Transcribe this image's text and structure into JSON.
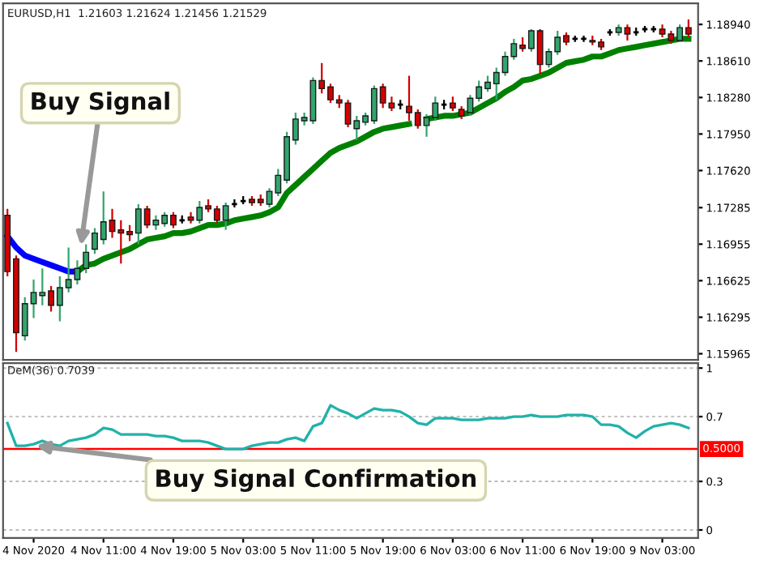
{
  "chart_data": [
    {
      "type": "candlestick",
      "title": "EURUSD,H1  1.21603 1.21624 1.21456 1.21529",
      "categories": [
        null,
        null,
        null,
        null,
        null,
        null,
        null,
        null,
        null,
        null,
        null,
        null,
        null,
        null,
        null,
        null,
        null,
        null,
        null,
        null,
        null,
        null,
        null,
        null,
        null,
        null,
        null,
        null,
        null,
        null,
        null,
        null,
        null,
        null,
        null,
        null,
        null,
        null,
        null,
        null,
        null,
        null,
        null,
        null,
        null,
        null,
        null,
        null,
        null,
        null,
        null,
        null,
        null,
        null,
        null,
        null,
        null,
        null,
        null,
        null,
        null,
        null,
        null,
        null,
        null,
        null,
        null,
        null,
        null,
        null,
        null,
        null,
        null,
        null,
        null,
        null,
        null,
        null,
        null
      ],
      "ohlc": [
        [
          1.17215,
          1.17273,
          1.16664,
          1.16707
        ],
        [
          1.16823,
          1.16852,
          1.15982,
          1.16156
        ],
        [
          1.16127,
          1.16475,
          1.16084,
          1.16417
        ],
        [
          1.16417,
          1.16635,
          1.16287,
          1.16519
        ],
        [
          1.1649,
          1.16736,
          1.16403,
          1.16519
        ],
        [
          1.16533,
          1.16577,
          1.16345,
          1.16403
        ],
        [
          1.16403,
          1.16664,
          1.16258,
          1.16562
        ],
        [
          1.16562,
          1.16925,
          1.16519,
          1.16635
        ],
        [
          1.16635,
          1.16809,
          1.16591,
          1.16736
        ],
        [
          1.16736,
          1.16954,
          1.16693,
          1.16881
        ],
        [
          1.1691,
          1.17099,
          1.16867,
          1.17055
        ],
        [
          1.16997,
          1.17432,
          1.16954,
          1.17157
        ],
        [
          1.17171,
          1.17273,
          1.17012,
          1.1707
        ],
        [
          1.17084,
          1.17171,
          1.1678,
          1.17055
        ],
        [
          1.1707,
          1.17128,
          1.16983,
          1.17041
        ],
        [
          1.17055,
          1.17316,
          1.16954,
          1.17273
        ],
        [
          1.17273,
          1.17302,
          1.17099,
          1.17128
        ],
        [
          1.17128,
          1.17215,
          1.17084,
          1.17171
        ],
        [
          1.17142,
          1.17244,
          1.17113,
          1.17215
        ],
        [
          1.17215,
          1.17244,
          1.17099,
          1.17128
        ],
        [
          1.17171,
          1.17215,
          1.17142,
          1.17171
        ],
        [
          1.172,
          1.17244,
          1.17142,
          1.17171
        ],
        [
          1.17171,
          1.17345,
          1.17142,
          1.17287
        ],
        [
          1.17302,
          1.1736,
          1.17244,
          1.17273
        ],
        [
          1.17273,
          1.17302,
          1.17142,
          1.17171
        ],
        [
          1.17171,
          1.17331,
          1.17084,
          1.17302
        ],
        [
          1.17316,
          1.1736,
          1.17287,
          1.17316
        ],
        [
          1.17345,
          1.17389,
          1.17316,
          1.17345
        ],
        [
          1.1736,
          1.17389,
          1.17302,
          1.17331
        ],
        [
          1.1736,
          1.17403,
          1.17302,
          1.17331
        ],
        [
          1.17316,
          1.17461,
          1.17287,
          1.17432
        ],
        [
          1.17418,
          1.17635,
          1.17389,
          1.17577
        ],
        [
          1.17534,
          1.17969,
          1.17505,
          1.17925
        ],
        [
          1.17896,
          1.18143,
          1.17853,
          1.18085
        ],
        [
          1.1807,
          1.18143,
          1.18027,
          1.18099
        ],
        [
          1.1807,
          1.18462,
          1.18041,
          1.18433
        ],
        [
          1.18433,
          1.18592,
          1.18317,
          1.1836
        ],
        [
          1.18375,
          1.18404,
          1.1823,
          1.18259
        ],
        [
          1.18259,
          1.18302,
          1.18186,
          1.1823
        ],
        [
          1.1823,
          1.18259,
          1.18012,
          1.18041
        ],
        [
          1.17998,
          1.18114,
          1.17896,
          1.1807
        ],
        [
          1.18056,
          1.18143,
          1.18027,
          1.18114
        ],
        [
          1.1807,
          1.18389,
          1.18041,
          1.1836
        ],
        [
          1.18375,
          1.18404,
          1.18186,
          1.1823
        ],
        [
          1.1823,
          1.18288,
          1.18157,
          1.18186
        ],
        [
          1.18215,
          1.18259,
          1.18172,
          1.18215
        ],
        [
          1.18201,
          1.18476,
          1.1807,
          1.18143
        ],
        [
          1.18143,
          1.18172,
          1.17998,
          1.18027
        ],
        [
          1.18027,
          1.18128,
          1.17925,
          1.18099
        ],
        [
          1.18099,
          1.18288,
          1.1807,
          1.1823
        ],
        [
          1.18215,
          1.18259,
          1.18172,
          1.18215
        ],
        [
          1.1823,
          1.18288,
          1.18157,
          1.18186
        ],
        [
          1.18172,
          1.18201,
          1.18085,
          1.18114
        ],
        [
          1.18143,
          1.18302,
          1.18114,
          1.18273
        ],
        [
          1.18273,
          1.18433,
          1.18244,
          1.18375
        ],
        [
          1.1836,
          1.18476,
          1.18331,
          1.18418
        ],
        [
          1.18404,
          1.18549,
          1.18259,
          1.18505
        ],
        [
          1.18505,
          1.18694,
          1.18476,
          1.1865
        ],
        [
          1.1865,
          1.1881,
          1.18621,
          1.18766
        ],
        [
          1.18752,
          1.18824,
          1.18694,
          1.18723
        ],
        [
          1.18723,
          1.18897,
          1.18694,
          1.18882
        ],
        [
          1.18882,
          1.18897,
          1.18491,
          1.18578
        ],
        [
          1.18578,
          1.18723,
          1.18549,
          1.18694
        ],
        [
          1.18694,
          1.18882,
          1.18665,
          1.18824
        ],
        [
          1.18839,
          1.18868,
          1.18752,
          1.18781
        ],
        [
          1.1881,
          1.18839,
          1.18781,
          1.1881
        ],
        [
          1.1881,
          1.18839,
          1.18781,
          1.1881
        ],
        [
          1.18795,
          1.18839,
          1.18752,
          1.18781
        ],
        [
          1.18781,
          1.1881,
          1.18708,
          1.18737
        ],
        [
          1.18868,
          1.18897,
          1.18839,
          1.18868
        ],
        [
          1.18868,
          1.1894,
          1.18839,
          1.18911
        ],
        [
          1.18911,
          1.1894,
          1.18795,
          1.18853
        ],
        [
          1.18868,
          1.18911,
          1.18839,
          1.18868
        ],
        [
          1.18897,
          1.18926,
          1.18868,
          1.18897
        ],
        [
          1.18897,
          1.18926,
          1.18868,
          1.18897
        ],
        [
          1.18897,
          1.1894,
          1.18824,
          1.18853
        ],
        [
          1.18853,
          1.18882,
          1.18766,
          1.18795
        ],
        [
          1.18795,
          1.1894,
          1.18781,
          1.18911
        ],
        [
          1.18911,
          1.18984,
          1.18824,
          1.18853
        ]
      ],
      "colors": [
        "#d40000",
        "#d40000",
        "#32a56e",
        "#32a56e",
        "#32a56e",
        "#d40000",
        "#32a56e",
        "#32a56e",
        "#32a56e",
        "#32a56e",
        "#32a56e",
        "#32a56e",
        "#d40000",
        "#d40000",
        "#d40000",
        "#32a56e",
        "#d40000",
        "#32a56e",
        "#32a56e",
        "#d40000",
        "#000000",
        "#d40000",
        "#32a56e",
        "#d40000",
        "#d40000",
        "#32a56e",
        "#000000",
        "#000000",
        "#d40000",
        "#d40000",
        "#32a56e",
        "#32a56e",
        "#32a56e",
        "#32a56e",
        "#32a56e",
        "#32a56e",
        "#d40000",
        "#d40000",
        "#d40000",
        "#d40000",
        "#32a56e",
        "#32a56e",
        "#32a56e",
        "#d40000",
        "#d40000",
        "#000000",
        "#d40000",
        "#d40000",
        "#32a56e",
        "#32a56e",
        "#000000",
        "#d40000",
        "#d40000",
        "#32a56e",
        "#32a56e",
        "#32a56e",
        "#32a56e",
        "#32a56e",
        "#32a56e",
        "#d40000",
        "#32a56e",
        "#d40000",
        "#32a56e",
        "#32a56e",
        "#d40000",
        "#000000",
        "#000000",
        "#d40000",
        "#d40000",
        "#000000",
        "#32a56e",
        "#d40000",
        "#000000",
        "#000000",
        "#000000",
        "#d40000",
        "#d40000",
        "#32a56e",
        "#d40000"
      ],
      "series": [
        {
          "type": "line",
          "color": "#0000ff",
          "values": [
            1.17026,
            1.16925,
            1.16852,
            1.16823,
            1.16794,
            1.16765,
            1.16736,
            1.16707,
            1.16707,
            null,
            null,
            null,
            null,
            null,
            null,
            null,
            null,
            null,
            null,
            null,
            null,
            null,
            null,
            null,
            null,
            null,
            null,
            null,
            null,
            null,
            null,
            null,
            null,
            null,
            null,
            null,
            null,
            null,
            null,
            null,
            null,
            null,
            null,
            null,
            null,
            null,
            null,
            null,
            null,
            null,
            null,
            null,
            null,
            null,
            null,
            null,
            null,
            null,
            null,
            null,
            null,
            null,
            null,
            null,
            null,
            null,
            null,
            null,
            null,
            null,
            null,
            null,
            null,
            null,
            null,
            null,
            null,
            null,
            null
          ]
        },
        {
          "type": "line",
          "color": "#008000",
          "values": [
            null,
            null,
            null,
            null,
            null,
            null,
            null,
            null,
            1.16707,
            1.16765,
            1.1678,
            1.16823,
            1.16852,
            1.16881,
            1.1691,
            1.16954,
            1.16997,
            1.17012,
            1.17026,
            1.17055,
            1.17055,
            1.1707,
            1.17099,
            1.17128,
            1.17128,
            1.17142,
            1.17171,
            1.17186,
            1.172,
            1.17215,
            1.17244,
            1.17287,
            1.17418,
            1.1749,
            1.17563,
            1.17635,
            1.17708,
            1.1778,
            1.17824,
            1.17853,
            1.17882,
            1.17925,
            1.17969,
            1.17998,
            1.18012,
            1.18027,
            1.18041,
            null,
            1.18085,
            1.18099,
            1.18114,
            1.18114,
            1.18128,
            1.18143,
            1.18186,
            1.1823,
            1.18273,
            1.18331,
            1.18375,
            1.18433,
            1.18447,
            1.18476,
            1.18505,
            1.18549,
            1.18592,
            1.18607,
            1.18621,
            1.1865,
            1.1865,
            1.18679,
            1.18708,
            1.18723,
            1.18737,
            1.18752,
            1.18766,
            1.18781,
            1.18795,
            1.1881,
            1.1881
          ]
        }
      ],
      "ylim": [
        1.1591,
        1.1913
      ],
      "yticks": [
        {
          "value": 1.1894,
          "label": "1.18940"
        },
        {
          "value": 1.1861,
          "label": "1.18610"
        },
        {
          "value": 1.1828,
          "label": "1.18280"
        },
        {
          "value": 1.1795,
          "label": "1.17950"
        },
        {
          "value": 1.1762,
          "label": "1.17620"
        },
        {
          "value": 1.17285,
          "label": "1.17285"
        },
        {
          "value": 1.16955,
          "label": "1.16955"
        },
        {
          "value": 1.16625,
          "label": "1.16625"
        },
        {
          "value": 1.16295,
          "label": "1.16295"
        },
        {
          "value": 1.15965,
          "label": "1.15965"
        }
      ],
      "tick_labels": "y",
      "annotations": [
        "Buy Signal"
      ]
    },
    {
      "type": "line",
      "title": "DeM(36) 0.7039",
      "categories": [
        null,
        null,
        null,
        "4 Nov 2020",
        null,
        null,
        null,
        null,
        null,
        null,
        null,
        "4 Nov 11:00",
        null,
        null,
        null,
        null,
        null,
        null,
        null,
        "4 Nov 19:00",
        null,
        null,
        null,
        null,
        null,
        null,
        null,
        "5 Nov 03:00",
        null,
        null,
        null,
        null,
        null,
        null,
        null,
        "5 Nov 11:00",
        null,
        null,
        null,
        null,
        null,
        null,
        null,
        "5 Nov 19:00",
        null,
        null,
        null,
        null,
        null,
        null,
        null,
        "6 Nov 03:00",
        null,
        null,
        null,
        null,
        null,
        null,
        null,
        "6 Nov 11:00",
        null,
        null,
        null,
        null,
        null,
        null,
        null,
        "6 Nov 19:00",
        null,
        null,
        null,
        null,
        null,
        null,
        null,
        "9 Nov 03:00",
        null,
        null,
        null
      ],
      "series": [
        {
          "color": "#20b2aa",
          "values": [
            0.66,
            0.52,
            0.52,
            0.53,
            0.55,
            0.53,
            0.52,
            0.55,
            0.56,
            0.57,
            0.59,
            0.63,
            0.62,
            0.59,
            0.59,
            0.59,
            0.59,
            0.58,
            0.58,
            0.57,
            0.55,
            0.55,
            0.55,
            0.54,
            0.52,
            0.5,
            0.5,
            0.5,
            0.52,
            0.53,
            0.54,
            0.54,
            0.56,
            0.57,
            0.55,
            0.64,
            0.66,
            0.77,
            0.74,
            0.72,
            0.69,
            0.72,
            0.75,
            0.74,
            0.74,
            0.73,
            0.7,
            0.66,
            0.65,
            0.69,
            0.69,
            0.69,
            0.68,
            0.68,
            0.68,
            0.69,
            0.69,
            0.69,
            0.7,
            0.7,
            0.71,
            0.7,
            0.7,
            0.7,
            0.71,
            0.71,
            0.71,
            0.7,
            0.65,
            0.65,
            0.64,
            0.6,
            0.57,
            0.61,
            0.64,
            0.65,
            0.66,
            0.65,
            0.63
          ]
        }
      ],
      "ylim": [
        -0.05,
        1.03
      ],
      "yticks": [
        0,
        0.3,
        0.7,
        1
      ],
      "grid": "y",
      "ref_lines": [
        {
          "axis": "y",
          "value": 0.5,
          "label": "0.5000",
          "color": "#ff0000"
        }
      ],
      "annotations": [
        {
          "text": "Buy Signal Confirmation",
          "y": 0.52
        }
      ]
    }
  ]
}
